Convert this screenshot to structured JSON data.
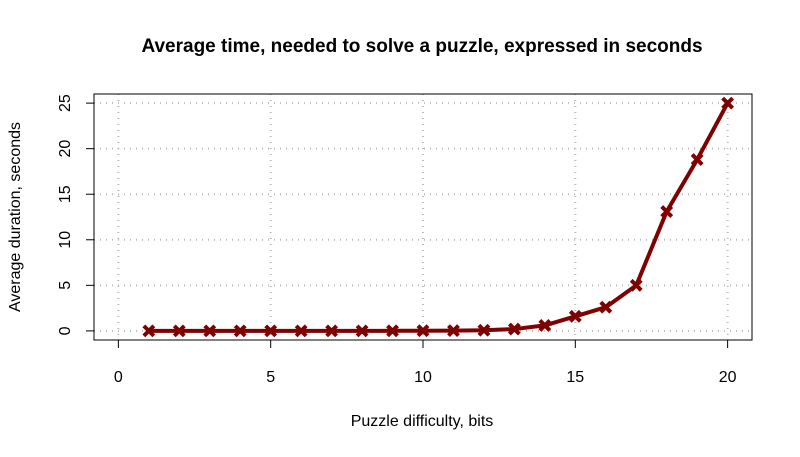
{
  "chart_data": {
    "type": "line",
    "title": "Average time, needed to solve a puzzle, expressed in seconds",
    "x_label": "Puzzle difficulty, bits",
    "y_label": "Average duration, seconds",
    "x": [
      1,
      2,
      3,
      4,
      5,
      6,
      7,
      8,
      9,
      10,
      11,
      12,
      13,
      14,
      15,
      16,
      17,
      18,
      19,
      20
    ],
    "series": [
      {
        "name": "Average duration",
        "color": "#7f0000",
        "values": [
          0.0,
          0.0,
          0.0,
          0.0,
          0.0,
          0.0,
          0.0,
          0.0,
          0.01,
          0.02,
          0.03,
          0.07,
          0.2,
          0.6,
          1.6,
          2.6,
          5.0,
          13.1,
          18.8,
          25.0
        ]
      }
    ],
    "xlim": [
      -0.8,
      20.8
    ],
    "xticks": [
      0,
      5,
      10,
      15,
      20
    ],
    "ylim": [
      -1,
      26
    ],
    "yticks": [
      0,
      5,
      10,
      15,
      20,
      25
    ],
    "grid": true
  }
}
